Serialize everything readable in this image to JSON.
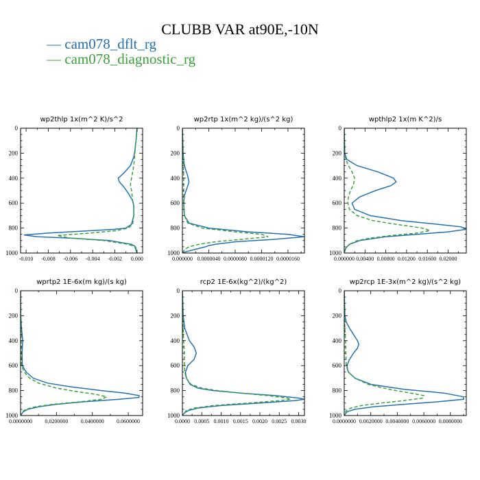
{
  "figure": {
    "title": "CLUBB VAR at90E,-10N",
    "legend": [
      {
        "label": "— cam078_dflt_rg",
        "color": "#2270b0"
      },
      {
        "label": "— cam078_diagnostic_rg",
        "color": "#3aa03a"
      }
    ]
  },
  "chart_data": [
    {
      "type": "line",
      "title": "wp2thlp   1x(m^2 K)/s^2",
      "ylim": [
        1000,
        0
      ],
      "yticks": [
        0,
        200,
        400,
        600,
        800,
        1000
      ],
      "xlim": [
        -0.0105,
        0.0005
      ],
      "xticks": [
        -0.01,
        -0.008,
        -0.006,
        -0.004,
        -0.002,
        0.0
      ],
      "xtick_labels": [
        "-0.010",
        "-0.008",
        "-0.006",
        "-0.004",
        "-0.002",
        "0.000"
      ],
      "series": [
        {
          "name": "cam078_dflt_rg",
          "color": "#2270b0",
          "dash": "",
          "y": [
            0,
            100,
            180,
            230,
            300,
            360,
            400,
            430,
            470,
            520,
            580,
            620,
            700,
            770,
            800,
            810,
            820,
            840,
            855,
            870,
            880,
            900,
            930,
            945,
            960,
            980,
            1000
          ],
          "x": [
            0.0,
            -0.0001,
            -0.0002,
            -0.0003,
            -0.0006,
            -0.0012,
            -0.0017,
            -0.0016,
            -0.0012,
            -0.0008,
            -0.0004,
            -0.0003,
            -0.0003,
            -0.0005,
            -0.001,
            -0.002,
            -0.004,
            -0.008,
            -0.0102,
            -0.009,
            -0.006,
            -0.0025,
            -0.0005,
            -0.0002,
            -0.0001,
            -0.0001,
            0.0
          ]
        },
        {
          "name": "cam078_diagnostic_rg",
          "color": "#3aa03a",
          "dash": "5,3",
          "y": [
            0,
            100,
            200,
            300,
            400,
            450,
            500,
            580,
            620,
            700,
            770,
            800,
            820,
            840,
            860,
            880,
            900,
            930,
            950,
            980,
            1000
          ],
          "x": [
            0.0,
            -0.0001,
            -0.0002,
            -0.0003,
            -0.0005,
            -0.0006,
            -0.0005,
            -0.0004,
            -0.0003,
            -0.0003,
            -0.0004,
            -0.0008,
            -0.0018,
            -0.0042,
            -0.0072,
            -0.006,
            -0.003,
            -0.0008,
            -0.0002,
            -0.0001,
            0.0
          ]
        }
      ]
    },
    {
      "type": "line",
      "title": "wp2rtp   1x(m^2 kg)/(s^2 kg)",
      "ylim": [
        1000,
        0
      ],
      "yticks": [
        0,
        200,
        400,
        600,
        800,
        1000
      ],
      "xlim": [
        0,
        1.85e-05
      ],
      "xticks": [
        0,
        4e-06,
        8e-06,
        1.2e-05,
        1.6e-05
      ],
      "xtick_labels": [
        "0.000000",
        "0.0000040",
        "0.0000080",
        "0.0000120",
        "0.0000160"
      ],
      "series": [
        {
          "name": "cam078_dflt_rg",
          "color": "#2270b0",
          "dash": "",
          "y": [
            0,
            200,
            300,
            380,
            430,
            480,
            540,
            600,
            700,
            760,
            800,
            830,
            850,
            870,
            890,
            910,
            930,
            940,
            950,
            970,
            990,
            1000
          ],
          "x": [
            0,
            1e-07,
            3e-07,
            8e-07,
            1e-06,
            7e-07,
            3e-07,
            2e-07,
            3e-07,
            1e-06,
            4e-06,
            1e-05,
            1.6e-05,
            1.85e-05,
            1.4e-05,
            8e-06,
            5e-06,
            4e-06,
            3.5e-06,
            2e-06,
            5e-07,
            0
          ]
        },
        {
          "name": "cam078_diagnostic_rg",
          "color": "#3aa03a",
          "dash": "5,3",
          "y": [
            0,
            200,
            400,
            600,
            700,
            760,
            800,
            830,
            850,
            870,
            890,
            910,
            930,
            950,
            970,
            1000
          ],
          "x": [
            0,
            1e-07,
            2e-07,
            2e-07,
            3e-07,
            8e-07,
            3e-06,
            8e-06,
            1.2e-05,
            1.3e-05,
            9e-06,
            5e-06,
            2.5e-06,
            1e-06,
            4e-07,
            0
          ]
        }
      ]
    },
    {
      "type": "line",
      "title": "wpthlp2   1x(m K^2)/s",
      "ylim": [
        1000,
        0
      ],
      "yticks": [
        0,
        200,
        400,
        600,
        800,
        1000
      ],
      "xlim": [
        0,
        0.0235
      ],
      "xticks": [
        0,
        0.004,
        0.008,
        0.012,
        0.016,
        0.02
      ],
      "xtick_labels": [
        "0.000000",
        "0.00400",
        "0.00800",
        "0.01200",
        "0.01600",
        "0.02000"
      ],
      "series": [
        {
          "name": "cam078_dflt_rg",
          "color": "#2270b0",
          "dash": "",
          "y": [
            0,
            200,
            250,
            300,
            350,
            400,
            430,
            460,
            500,
            550,
            600,
            650,
            700,
            740,
            770,
            790,
            810,
            830,
            850,
            870,
            900,
            930,
            960,
            1000
          ],
          "x": [
            0,
            0.0001,
            0.0005,
            0.0025,
            0.0065,
            0.0095,
            0.01,
            0.009,
            0.006,
            0.003,
            0.0015,
            0.002,
            0.005,
            0.011,
            0.018,
            0.0225,
            0.0235,
            0.02,
            0.014,
            0.008,
            0.003,
            0.001,
            0.0003,
            0
          ]
        },
        {
          "name": "cam078_diagnostic_rg",
          "color": "#3aa03a",
          "dash": "5,3",
          "y": [
            0,
            200,
            250,
            300,
            350,
            400,
            450,
            500,
            550,
            600,
            650,
            700,
            740,
            770,
            800,
            820,
            840,
            860,
            880,
            900,
            930,
            960,
            1000
          ],
          "x": [
            0,
            0.0001,
            0.0003,
            0.0008,
            0.0015,
            0.002,
            0.0018,
            0.0012,
            0.0008,
            0.0007,
            0.001,
            0.0025,
            0.0055,
            0.01,
            0.015,
            0.0165,
            0.014,
            0.009,
            0.005,
            0.0025,
            0.001,
            0.0003,
            0
          ]
        }
      ]
    },
    {
      "type": "line",
      "title": "wprtp2   1E-6x(m kg)/(s kg)",
      "ylim": [
        1000,
        0
      ],
      "yticks": [
        0,
        200,
        400,
        600,
        800,
        1000
      ],
      "xlim": [
        0,
        0.068
      ],
      "xticks": [
        0,
        0.02,
        0.04,
        0.06
      ],
      "xtick_labels": [
        "0.0000000",
        "0.0200000",
        "0.0400000",
        "0.0600000"
      ],
      "series": [
        {
          "name": "cam078_dflt_rg",
          "color": "#2270b0",
          "dash": "",
          "y": [
            0,
            200,
            300,
            400,
            500,
            600,
            650,
            700,
            740,
            770,
            800,
            820,
            840,
            855,
            870,
            890,
            910,
            930,
            950,
            970,
            1000
          ],
          "x": [
            0,
            0.0001,
            0.0005,
            0.0012,
            0.0008,
            0.001,
            0.003,
            0.007,
            0.015,
            0.028,
            0.045,
            0.058,
            0.066,
            0.066,
            0.055,
            0.035,
            0.02,
            0.01,
            0.004,
            0.0015,
            0
          ]
        },
        {
          "name": "cam078_diagnostic_rg",
          "color": "#3aa03a",
          "dash": "5,3",
          "y": [
            0,
            200,
            400,
            600,
            650,
            700,
            740,
            780,
            810,
            830,
            850,
            870,
            890,
            910,
            930,
            950,
            970,
            1000
          ],
          "x": [
            0,
            0.0001,
            0.0003,
            0.0005,
            0.002,
            0.005,
            0.01,
            0.02,
            0.032,
            0.042,
            0.048,
            0.045,
            0.033,
            0.018,
            0.008,
            0.003,
            0.001,
            0
          ]
        }
      ]
    },
    {
      "type": "line",
      "title": "rcp2   1E-6x(kg^2)/(kg^2)",
      "ylim": [
        1000,
        0
      ],
      "yticks": [
        0,
        200,
        400,
        600,
        800,
        1000
      ],
      "xlim": [
        0,
        0.00315
      ],
      "xticks": [
        0,
        0.0005,
        0.001,
        0.0015,
        0.002,
        0.0025,
        0.003
      ],
      "xtick_labels": [
        "0.0000",
        "0.0005",
        "0.0010",
        "0.0015",
        "0.0020",
        "0.0025",
        "0.0030"
      ],
      "series": [
        {
          "name": "cam078_dflt_rg",
          "color": "#2270b0",
          "dash": "",
          "y": [
            0,
            200,
            300,
            400,
            450,
            500,
            550,
            600,
            650,
            700,
            750,
            780,
            800,
            820,
            840,
            860,
            870,
            880,
            900,
            920,
            940,
            960,
            980,
            1000
          ],
          "x": [
            0,
            2e-05,
            6e-05,
            0.00018,
            0.0003,
            0.00036,
            0.0003,
            0.00014,
            8e-05,
            0.0001,
            0.0002,
            0.0004,
            0.0008,
            0.0015,
            0.0024,
            0.003,
            0.00315,
            0.0029,
            0.002,
            0.001,
            0.0004,
            0.00015,
            5e-05,
            0
          ]
        },
        {
          "name": "cam078_diagnostic_rg",
          "color": "#3aa03a",
          "dash": "5,3",
          "y": [
            0,
            200,
            400,
            500,
            600,
            650,
            700,
            750,
            780,
            800,
            820,
            840,
            860,
            870,
            880,
            900,
            920,
            940,
            960,
            1000
          ],
          "x": [
            0,
            1e-05,
            3e-05,
            5e-05,
            5e-05,
            6e-05,
            0.0001,
            0.00022,
            0.0005,
            0.0009,
            0.0015,
            0.0022,
            0.0027,
            0.0028,
            0.0025,
            0.0017,
            0.0008,
            0.0003,
            0.0001,
            0
          ]
        }
      ]
    },
    {
      "type": "line",
      "title": "wp2rcp   1E-3x(m^2 kg)/(s^2 kg)",
      "ylim": [
        1000,
        0
      ],
      "yticks": [
        0,
        200,
        400,
        600,
        800,
        1000
      ],
      "xlim": [
        0,
        0.0092
      ],
      "xticks": [
        0,
        0.002,
        0.004,
        0.006,
        0.008
      ],
      "xtick_labels": [
        "0.0000000",
        "0.0020000",
        "0.0040000",
        "0.0060000",
        "0.0080000"
      ],
      "series": [
        {
          "name": "cam078_dflt_rg",
          "color": "#2270b0",
          "dash": "",
          "y": [
            0,
            200,
            250,
            300,
            350,
            400,
            430,
            460,
            500,
            550,
            600,
            650,
            700,
            750,
            790,
            820,
            850,
            870,
            890,
            910,
            930,
            950,
            970,
            1000
          ],
          "x": [
            0,
            5e-05,
            0.00015,
            0.0004,
            0.0007,
            0.001,
            0.0011,
            0.001,
            0.0007,
            0.0004,
            0.0002,
            0.0003,
            0.0008,
            0.002,
            0.0045,
            0.0075,
            0.009,
            0.009,
            0.007,
            0.0045,
            0.0022,
            0.0008,
            0.0002,
            0
          ]
        },
        {
          "name": "cam078_diagnostic_rg",
          "color": "#3aa03a",
          "dash": "5,3",
          "y": [
            0,
            200,
            300,
            400,
            500,
            600,
            650,
            700,
            750,
            790,
            820,
            840,
            860,
            880,
            900,
            920,
            940,
            960,
            1000
          ],
          "x": [
            0,
            2e-05,
            5e-05,
            0.0001,
            0.00012,
            0.00015,
            0.0003,
            0.0008,
            0.0018,
            0.0034,
            0.005,
            0.006,
            0.0059,
            0.0045,
            0.0028,
            0.0013,
            0.0005,
            0.00015,
            0
          ]
        }
      ]
    }
  ]
}
